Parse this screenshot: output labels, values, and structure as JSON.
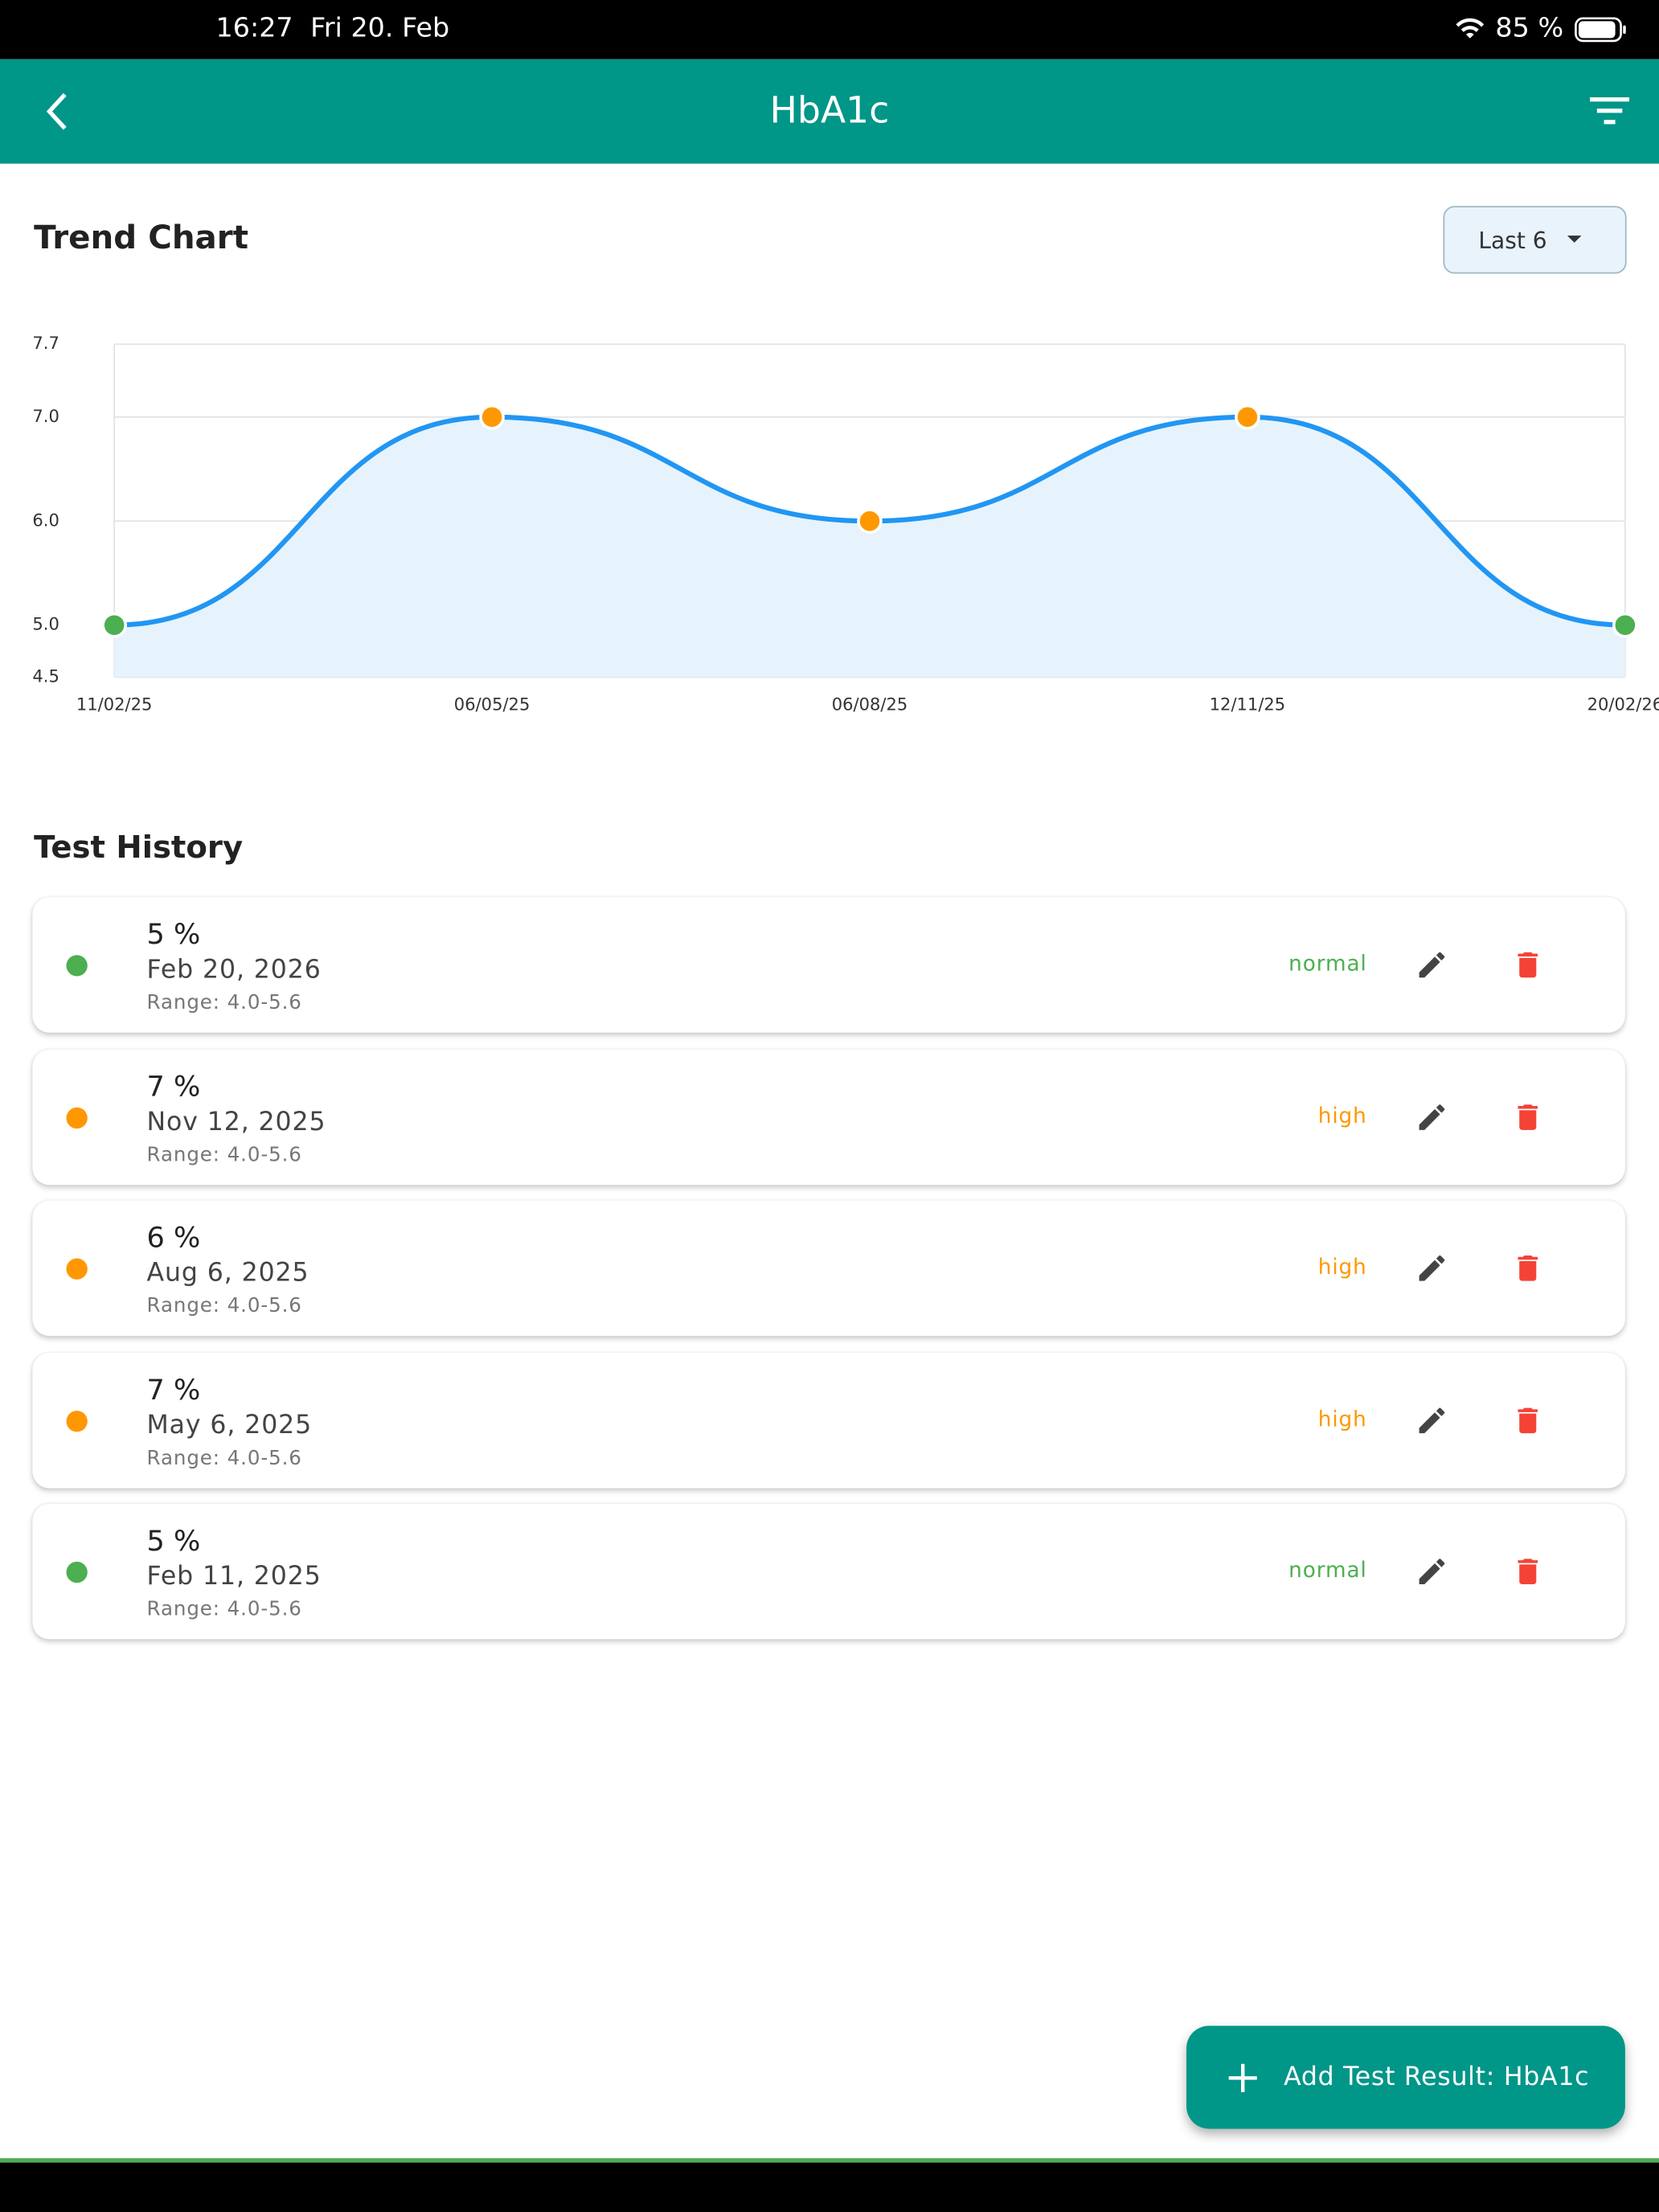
{
  "status_bar": {
    "time": "16:27",
    "date": "Fri 20. Feb",
    "battery": "85 %"
  },
  "app_bar": {
    "title": "HbA1c"
  },
  "trend": {
    "title": "Trend Chart",
    "range_button": "Last 6"
  },
  "chart_data": {
    "type": "line",
    "categories": [
      "11/02/25",
      "06/05/25",
      "06/08/25",
      "12/11/25",
      "20/02/26"
    ],
    "values": [
      5,
      7,
      6,
      7,
      5
    ],
    "color": "#2196f3",
    "area_color": "#e6f3fc",
    "point_colors": [
      "#4caf50",
      "#ff9800",
      "#ff9800",
      "#ff9800",
      "#4caf50"
    ],
    "ylim": [
      4.5,
      7.7
    ],
    "yticks": [
      4.5,
      {
        "value": 5,
        "label": "5.0"
      },
      {
        "value": 6,
        "label": "6.0"
      },
      {
        "value": 7,
        "label": "7.0"
      },
      7.7
    ],
    "grid": true
  },
  "history": {
    "title": "Test History",
    "items": [
      {
        "value": "5 %",
        "date": "Feb 20, 2026",
        "range": "Range: 4.0-5.6",
        "status": "normal",
        "color": "#4caf50"
      },
      {
        "value": "7 %",
        "date": "Nov 12, 2025",
        "range": "Range: 4.0-5.6",
        "status": "high",
        "color": "#ff9800"
      },
      {
        "value": "6 %",
        "date": "Aug 6, 2025",
        "range": "Range: 4.0-5.6",
        "status": "high",
        "color": "#ff9800"
      },
      {
        "value": "7 %",
        "date": "May 6, 2025",
        "range": "Range: 4.0-5.6",
        "status": "high",
        "color": "#ff9800"
      },
      {
        "value": "5 %",
        "date": "Feb 11, 2025",
        "range": "Range: 4.0-5.6",
        "status": "normal",
        "color": "#4caf50"
      }
    ]
  },
  "fab": {
    "label": "Add Test Result: HbA1c"
  }
}
